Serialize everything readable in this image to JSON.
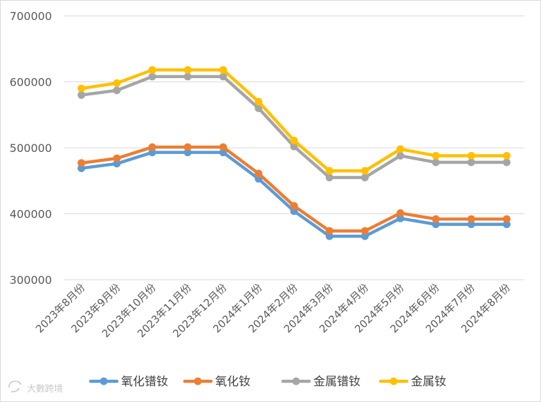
{
  "chart_data": {
    "type": "line",
    "title": "",
    "xlabel": "",
    "ylabel": "",
    "categories": [
      "2023年8月份",
      "2023年9月份",
      "2023年10月份",
      "2023年11月份",
      "2023年12月份",
      "2024年1月份",
      "2024年2月份",
      "2024年3月份",
      "2024年4月份",
      "2024年5月份",
      "2024年6月份",
      "2024年7月份",
      "2024年8月份"
    ],
    "ylim": [
      300000,
      700000
    ],
    "yticks": [
      300000,
      400000,
      500000,
      600000,
      700000
    ],
    "grid": true,
    "legend_position": "bottom",
    "series": [
      {
        "name": "氧化镨钕",
        "color": "#5B9BD5",
        "values": [
          469000,
          476000,
          493000,
          493000,
          493000,
          453000,
          404000,
          366000,
          366000,
          393000,
          384000,
          384000,
          384000
        ]
      },
      {
        "name": "氧化钕",
        "color": "#ED7D31",
        "values": [
          477000,
          484000,
          501000,
          501000,
          501000,
          461000,
          412000,
          374000,
          374000,
          401000,
          392000,
          392000,
          392000
        ]
      },
      {
        "name": "金属镨钕",
        "color": "#A5A5A5",
        "values": [
          580000,
          587000,
          608000,
          608000,
          608000,
          560000,
          502000,
          455000,
          455000,
          488000,
          478000,
          478000,
          478000
        ]
      },
      {
        "name": "金属钕",
        "color": "#FFC000",
        "values": [
          590000,
          598000,
          618000,
          618000,
          618000,
          570000,
          511000,
          465000,
          465000,
          498000,
          488000,
          488000,
          488000
        ]
      }
    ]
  },
  "watermark": {
    "text": "大數跨境",
    "icon": "brand-logo-icon"
  }
}
